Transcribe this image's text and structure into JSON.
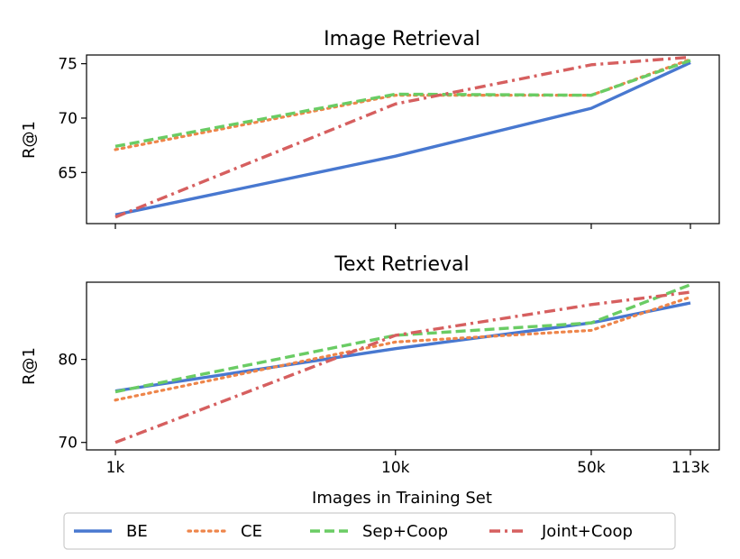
{
  "colors": {
    "BE": "#4878d0",
    "CE": "#ee854a",
    "Sep+Coop": "#6acc64",
    "Joint+Coop": "#d65f5f"
  },
  "chart_data": [
    {
      "type": "line",
      "title": "Image Retrieval",
      "xlabel": "",
      "ylabel": "R@1",
      "x_scale": "log",
      "x": [
        1000,
        10000,
        50000,
        113000
      ],
      "xticklabels": [
        "1k",
        "10k",
        "50k",
        "113k"
      ],
      "ylim": [
        60.3,
        75.8
      ],
      "yticks": [
        65,
        70,
        75
      ],
      "grid": false,
      "series": [
        {
          "name": "BE",
          "style": "solid",
          "values": [
            61.1,
            66.5,
            70.9,
            75.1
          ]
        },
        {
          "name": "CE",
          "style": "dotted",
          "values": [
            67.1,
            72.1,
            72.1,
            75.4
          ]
        },
        {
          "name": "Sep+Coop",
          "style": "dashed",
          "values": [
            67.4,
            72.2,
            72.1,
            75.3
          ]
        },
        {
          "name": "Joint+Coop",
          "style": "dashdot",
          "values": [
            60.9,
            71.3,
            74.9,
            75.6
          ]
        }
      ]
    },
    {
      "type": "line",
      "title": "Text Retrieval",
      "xlabel": "Images in Training Set",
      "ylabel": "R@1",
      "x_scale": "log",
      "x": [
        1000,
        10000,
        50000,
        113000
      ],
      "xticklabels": [
        "1k",
        "10k",
        "50k",
        "113k"
      ],
      "ylim": [
        69.1,
        89.3
      ],
      "yticks": [
        70,
        80
      ],
      "grid": false,
      "series": [
        {
          "name": "BE",
          "style": "solid",
          "values": [
            76.2,
            81.3,
            84.4,
            86.8
          ]
        },
        {
          "name": "CE",
          "style": "dotted",
          "values": [
            75.1,
            82.1,
            83.5,
            87.5
          ]
        },
        {
          "name": "Sep+Coop",
          "style": "dashed",
          "values": [
            76.1,
            82.9,
            84.4,
            89.0
          ]
        },
        {
          "name": "Joint+Coop",
          "style": "dashdot",
          "values": [
            70.0,
            82.9,
            86.6,
            88.1
          ]
        }
      ]
    }
  ],
  "legend": {
    "placement": "bottom-center",
    "entries": [
      "BE",
      "CE",
      "Sep+Coop",
      "Joint+Coop"
    ]
  }
}
